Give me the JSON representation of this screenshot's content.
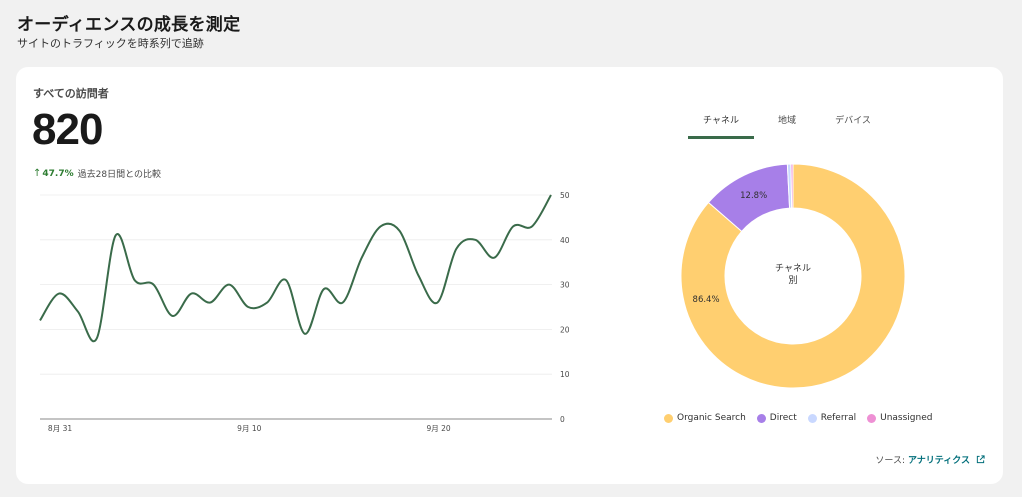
{
  "header": {
    "title": "オーディエンスの成長を測定",
    "subtitle": "サイトのトラフィックを時系列で追跡"
  },
  "card": {
    "heading": "すべての訪問者",
    "total": "820",
    "change_pct": "47.7%",
    "change_text": "過去28日間との比較"
  },
  "tabs": [
    {
      "label": "チャネル",
      "active": true
    },
    {
      "label": "地域",
      "active": false
    },
    {
      "label": "デバイス",
      "active": false
    }
  ],
  "donut": {
    "center_line1": "チャネル",
    "center_line2": "別"
  },
  "source": {
    "label": "ソース:",
    "link": "アナリティクス"
  },
  "colors": {
    "line": "#3a6b4a",
    "organic": "#ffcf70",
    "direct": "#a77fe8",
    "referral": "#c9d8ff",
    "unassigned": "#ee90d4"
  },
  "chart_data": [
    {
      "type": "line",
      "x": [
        "8月 30",
        "8月 31",
        "9月 1",
        "9月 2",
        "9月 3",
        "9月 4",
        "9月 5",
        "9月 6",
        "9月 7",
        "9月 8",
        "9月 9",
        "9月 10",
        "9月 11",
        "9月 12",
        "9月 13",
        "9月 14",
        "9月 15",
        "9月 16",
        "9月 17",
        "9月 18",
        "9月 19",
        "9月 20",
        "9月 21",
        "9月 22",
        "9月 23",
        "9月 24",
        "9月 25",
        "9月 26"
      ],
      "x_tick_labels": [
        "8月 31",
        "9月 10",
        "9月 20"
      ],
      "series": [
        {
          "values": [
            22,
            28,
            24,
            18,
            41,
            31,
            30,
            23,
            28,
            26,
            30,
            25,
            26,
            31,
            19,
            29,
            26,
            36,
            43,
            42,
            32,
            26,
            38,
            40,
            36,
            43,
            43,
            50
          ]
        }
      ],
      "ylim": [
        0,
        50
      ],
      "y_ticks": [
        0,
        10,
        20,
        30,
        40,
        50
      ],
      "grid": true
    },
    {
      "type": "pie",
      "categories": [
        "Organic Search",
        "Direct",
        "Referral",
        "Unassigned"
      ],
      "values": [
        86.4,
        12.8,
        0.5,
        0.3
      ],
      "data_labels": [
        "86.4%",
        "12.8%",
        "",
        ""
      ],
      "legend": "bottom"
    }
  ]
}
